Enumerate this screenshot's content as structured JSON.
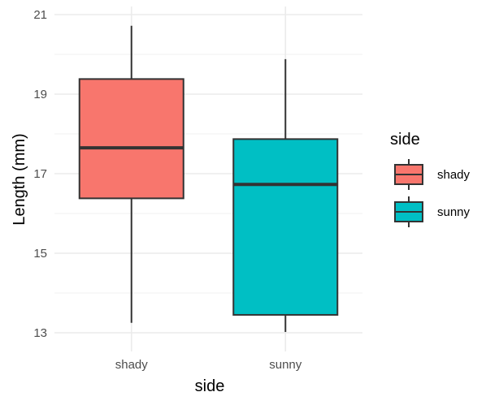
{
  "chart_data": {
    "type": "box",
    "title": "",
    "xlabel": "side",
    "ylabel": "Length (mm)",
    "ylim": [
      12.6,
      21.1
    ],
    "yticks": [
      13,
      15,
      17,
      19,
      21
    ],
    "yticks_labels": [
      "13",
      "15",
      "17",
      "19",
      "21"
    ],
    "categories": [
      "shady",
      "sunny"
    ],
    "boxes": [
      {
        "category": "shady",
        "min": 13.25,
        "q1": 16.38,
        "median": 17.65,
        "q3": 19.38,
        "max": 20.72,
        "color": "#F8766D"
      },
      {
        "category": "sunny",
        "min": 13.02,
        "q1": 13.45,
        "median": 16.73,
        "q3": 17.87,
        "max": 19.88,
        "color": "#00BFC4"
      }
    ],
    "legend": {
      "title": "side",
      "placement": "right",
      "entries": [
        "shady",
        "sunny"
      ]
    },
    "grid": true,
    "theme": "minimal"
  }
}
